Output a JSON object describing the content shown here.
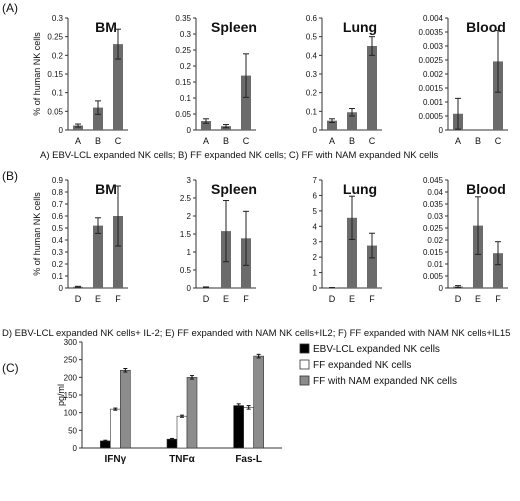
{
  "chart_data": [
    {
      "type": "bar",
      "panel": "(A)",
      "title": "BM",
      "ylabel": "% of human NK cells",
      "categories": [
        "A",
        "B",
        "C"
      ],
      "values": [
        0.012,
        0.06,
        0.23
      ],
      "errors": [
        0.004,
        0.018,
        0.04
      ],
      "ylim": [
        0,
        0.3
      ],
      "yticks": [
        "0",
        "0.05",
        "0.1",
        "0.15",
        "0.2",
        "0.25",
        "0.3"
      ],
      "bar_color": "#6b6b6b"
    },
    {
      "type": "bar",
      "panel": "(A)",
      "title": "Spleen",
      "categories": [
        "A",
        "B",
        "C"
      ],
      "values": [
        0.028,
        0.012,
        0.17
      ],
      "errors": [
        0.007,
        0.005,
        0.068
      ],
      "ylim": [
        0,
        0.35
      ],
      "yticks": [
        "0",
        "0.05",
        "0.1",
        "0.15",
        "0.2",
        "0.25",
        "0.3",
        "0.35"
      ],
      "bar_color": "#6b6b6b"
    },
    {
      "type": "bar",
      "panel": "(A)",
      "title": "Lung",
      "categories": [
        "A",
        "B",
        "C"
      ],
      "values": [
        0.05,
        0.095,
        0.45
      ],
      "errors": [
        0.01,
        0.02,
        0.05
      ],
      "ylim": [
        0,
        0.6
      ],
      "yticks": [
        "0",
        "0.1",
        "0.2",
        "0.3",
        "0.4",
        "0.5",
        "0.6"
      ],
      "bar_color": "#6b6b6b"
    },
    {
      "type": "bar",
      "panel": "(A)",
      "title": "Blood",
      "categories": [
        "A",
        "B",
        "C"
      ],
      "values": [
        0.00058,
        0,
        0.00245
      ],
      "errors": [
        0.00055,
        0,
        0.0011
      ],
      "ylim": [
        0,
        0.004
      ],
      "yticks": [
        "0",
        "0.0005",
        "0.001",
        "0.0015",
        "0.002",
        "0.0025",
        "0.003",
        "0.0035",
        "0.004"
      ],
      "bar_color": "#6b6b6b"
    },
    {
      "type": "bar",
      "panel": "(B)",
      "title": "BM",
      "ylabel": "% of human NK cells",
      "categories": [
        "D",
        "E",
        "F"
      ],
      "values": [
        0.01,
        0.52,
        0.6
      ],
      "errors": [
        0.004,
        0.065,
        0.25
      ],
      "ylim": [
        0,
        0.9
      ],
      "yticks": [
        "0",
        "0.1",
        "0.2",
        "0.3",
        "0.4",
        "0.5",
        "0.6",
        "0.7",
        "0.8",
        "0.9"
      ],
      "bar_color": "#6b6b6b"
    },
    {
      "type": "bar",
      "panel": "(B)",
      "title": "Spleen",
      "categories": [
        "D",
        "E",
        "F"
      ],
      "values": [
        0.02,
        1.58,
        1.38
      ],
      "errors": [
        0.01,
        0.85,
        0.75
      ],
      "ylim": [
        0,
        3
      ],
      "yticks": [
        "0",
        "0.5",
        "1",
        "1.5",
        "2",
        "2.5",
        "3"
      ],
      "bar_color": "#6b6b6b"
    },
    {
      "type": "bar",
      "panel": "(B)",
      "title": "Lung",
      "categories": [
        "D",
        "E",
        "F"
      ],
      "values": [
        0.02,
        4.55,
        2.75
      ],
      "errors": [
        0.01,
        1.4,
        0.8
      ],
      "ylim": [
        0,
        7
      ],
      "yticks": [
        "0",
        "1",
        "2",
        "3",
        "4",
        "5",
        "6",
        "7"
      ],
      "bar_color": "#6b6b6b"
    },
    {
      "type": "bar",
      "panel": "(B)",
      "title": "Blood",
      "categories": [
        "D",
        "E",
        "F"
      ],
      "values": [
        0.0006,
        0.026,
        0.0145
      ],
      "errors": [
        0.0004,
        0.012,
        0.0048
      ],
      "ylim": [
        0,
        0.045
      ],
      "yticks": [
        "0",
        "0.005",
        "0.01",
        "0.015",
        "0.02",
        "0.025",
        "0.03",
        "0.035",
        "0.04",
        "0.045"
      ],
      "bar_color": "#6b6b6b"
    },
    {
      "type": "bar",
      "panel": "(C)",
      "ylabel": "pg/ml",
      "categories": [
        "IFNγ",
        "TNFα",
        "Fas-L"
      ],
      "ylim": [
        0,
        300
      ],
      "yticks": [
        "0",
        "50",
        "100",
        "150",
        "200",
        "250",
        "300"
      ],
      "series": [
        {
          "name": "EBV-LCL expanded NK cells",
          "values": [
            20,
            25,
            120
          ],
          "errors": [
            2,
            2,
            5
          ],
          "color": "#000000"
        },
        {
          "name": "FF expanded NK cells",
          "values": [
            110,
            90,
            115
          ],
          "errors": [
            3,
            3,
            5
          ],
          "color": "#ffffff"
        },
        {
          "name": "FF with NAM expanded NK cells",
          "values": [
            220,
            200,
            260
          ],
          "errors": [
            5,
            5,
            5
          ],
          "color": "#8c8c8c"
        }
      ]
    }
  ],
  "labels": {
    "panel_a": "(A)",
    "panel_b": "(B)",
    "panel_c": "(C)",
    "caption_a": "A) EBV-LCL expanded NK cells;  B) FF expanded NK cells;  C) FF with NAM expanded NK cells",
    "caption_b": "D) EBV-LCL expanded NK cells+ IL-2;  E) FF expanded with NAM NK cells+IL2;  F) FF expanded with NAM NK cells+IL15"
  }
}
